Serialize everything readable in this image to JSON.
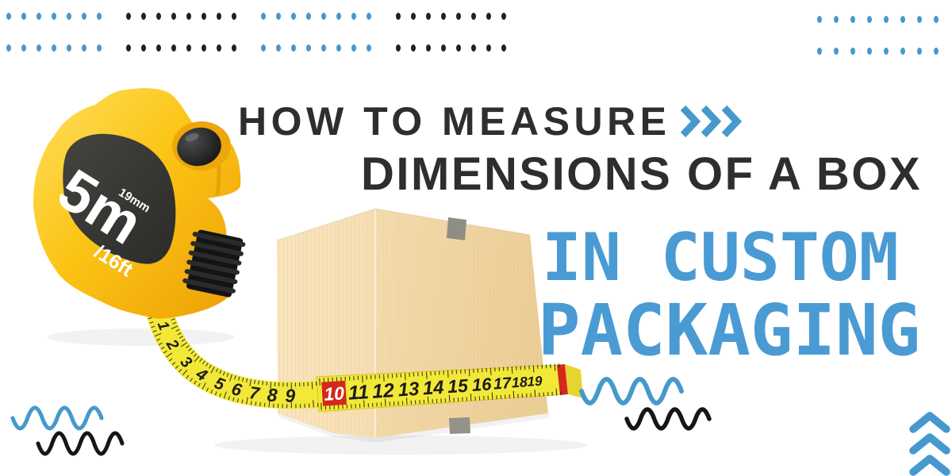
{
  "title": {
    "line1": "HOW TO MEASURE",
    "line2": "DIMENSIONS OF A BOX"
  },
  "subtitle": {
    "line1": "IN CUSTOM",
    "line2": "PACKAGING"
  },
  "tape_measure": {
    "capacity": "5m",
    "width_label": "19mm",
    "imperial": "/16ft"
  },
  "tape": {
    "curve_numbers": [
      "1",
      "2",
      "3",
      "4",
      "5",
      "6",
      "7",
      "8",
      "9"
    ],
    "band_numbers": [
      "10",
      "11",
      "12",
      "13",
      "14",
      "15",
      "16",
      "17",
      "18",
      "19"
    ],
    "highlighted_number": "10",
    "highlight_index": 0
  },
  "colors": {
    "accent_blue": "#4599cd",
    "heading_dark": "#2e2e2e",
    "subtitle_blue": "#4a9bd4",
    "tape_yellow": "#f2e838",
    "tape_red": "#d5271a",
    "box_left": "#f8e2b8",
    "box_right": "#f1d5a4",
    "dot_dark": "#212121",
    "wave_dark": "#161616"
  },
  "decor": {
    "dot_blocks": {
      "left": {
        "rows": 2,
        "groups": [
          {
            "color": "blue",
            "count": 7
          },
          {
            "color": "dark",
            "count": 8
          },
          {
            "color": "blue",
            "count": 8
          },
          {
            "color": "dark",
            "count": 8
          }
        ]
      },
      "right": {
        "rows": 2,
        "groups": [
          {
            "color": "blue",
            "count": 8
          }
        ]
      }
    },
    "waves": [
      {
        "id": "bottom-left-blue",
        "color": "blue"
      },
      {
        "id": "bottom-left-black",
        "color": "dark"
      },
      {
        "id": "middle-blue",
        "color": "blue"
      },
      {
        "id": "middle-black",
        "color": "dark"
      }
    ],
    "title_chevron_count": 3,
    "up_chevron_count": 3
  }
}
